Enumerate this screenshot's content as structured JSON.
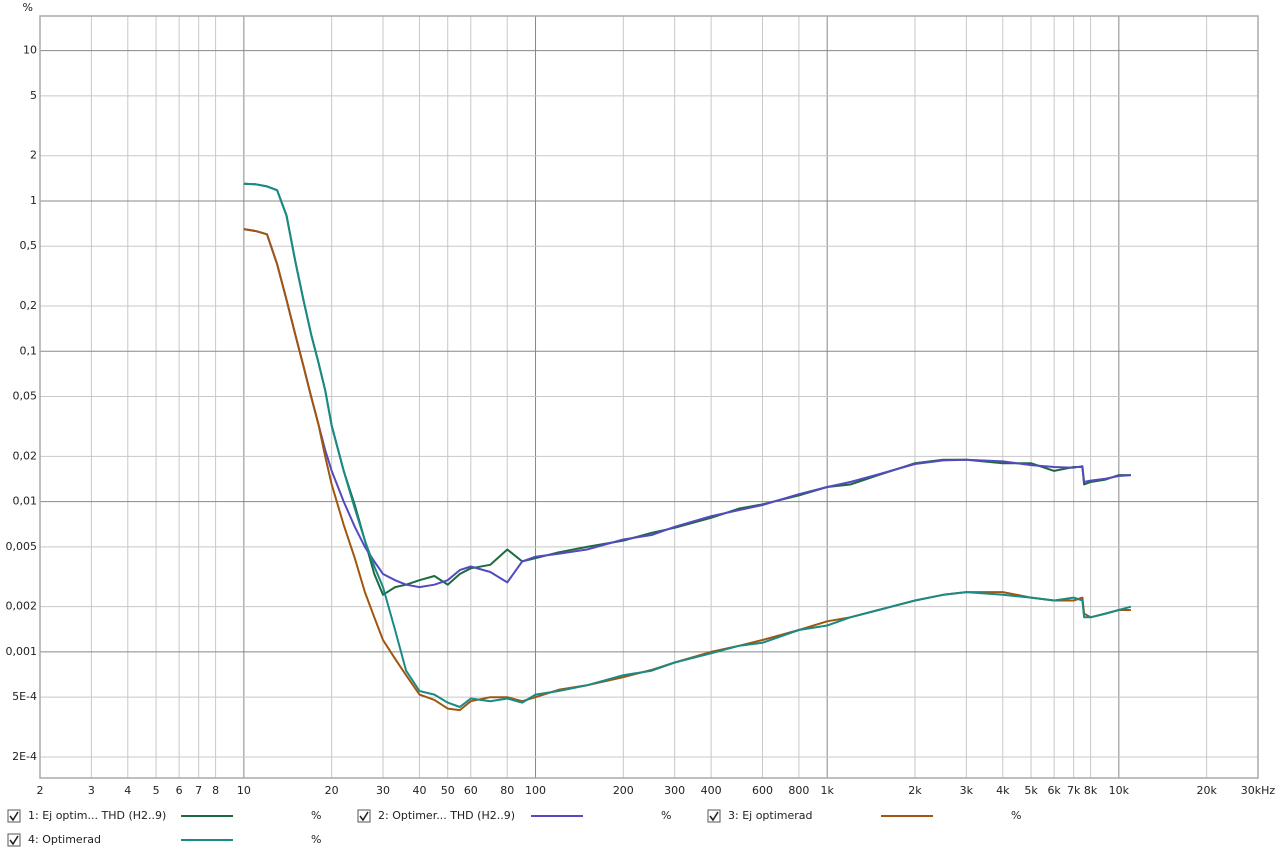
{
  "chart_data": {
    "type": "line",
    "y_label": "%",
    "xscale": "log",
    "yscale": "log",
    "grid": true,
    "xlim": [
      2,
      30000
    ],
    "ylim": [
      0.000145,
      17
    ],
    "xticks": [
      2,
      3,
      4,
      5,
      6,
      7,
      8,
      10,
      20,
      30,
      40,
      50,
      60,
      80,
      100,
      200,
      300,
      400,
      600,
      800,
      {
        "value": 1000,
        "label": "1k"
      },
      {
        "value": 2000,
        "label": "2k"
      },
      {
        "value": 3000,
        "label": "3k"
      },
      {
        "value": 4000,
        "label": "4k"
      },
      {
        "value": 5000,
        "label": "5k"
      },
      {
        "value": 6000,
        "label": "6k"
      },
      {
        "value": 7000,
        "label": "7k"
      },
      {
        "value": 8000,
        "label": "8k"
      },
      {
        "value": 10000,
        "label": "10k"
      },
      {
        "value": 20000,
        "label": "20k"
      },
      {
        "value": 30000,
        "label": "30kHz"
      }
    ],
    "yticks": [
      10,
      5,
      2,
      1,
      {
        "value": 0.5,
        "label": "0,5"
      },
      {
        "value": 0.2,
        "label": "0,2"
      },
      {
        "value": 0.1,
        "label": "0,1"
      },
      {
        "value": 0.05,
        "label": "0,05"
      },
      {
        "value": 0.02,
        "label": "0,02"
      },
      {
        "value": 0.01,
        "label": "0,01"
      },
      {
        "value": 0.005,
        "label": "0,005"
      },
      {
        "value": 0.002,
        "label": "0,002"
      },
      {
        "value": 0.001,
        "label": "0,001"
      },
      {
        "value": 0.0005,
        "label": "5E-4"
      },
      {
        "value": 0.0002,
        "label": "2E-4"
      }
    ],
    "x": [
      10,
      11,
      12,
      13,
      14,
      15,
      16,
      17,
      18,
      19,
      20,
      22,
      24,
      26,
      28,
      30,
      33,
      36,
      40,
      45,
      50,
      55,
      60,
      70,
      80,
      90,
      100,
      120,
      150,
      200,
      250,
      300,
      400,
      500,
      600,
      800,
      1000,
      1200,
      1500,
      2000,
      2500,
      3000,
      4000,
      5000,
      6000,
      7000,
      7500,
      7600,
      8000,
      9000,
      10000,
      11000
    ],
    "series": [
      {
        "name": "1: Ej optim... THD (H2..9)",
        "unit": "%",
        "color": "#1c6b40",
        "values": [
          1.3,
          1.29,
          1.25,
          1.18,
          0.8,
          0.4,
          0.22,
          0.13,
          0.085,
          0.055,
          0.032,
          0.016,
          0.0095,
          0.0055,
          0.0033,
          0.0024,
          0.0027,
          0.0028,
          0.003,
          0.0032,
          0.0028,
          0.0033,
          0.0036,
          0.0038,
          0.0048,
          0.004,
          0.0042,
          0.0046,
          0.005,
          0.0055,
          0.0062,
          0.0067,
          0.0078,
          0.009,
          0.0096,
          0.011,
          0.0125,
          0.013,
          0.015,
          0.018,
          0.019,
          0.019,
          0.018,
          0.018,
          0.016,
          0.017,
          0.017,
          0.013,
          0.0135,
          0.014,
          0.015,
          0.015
        ]
      },
      {
        "name": "2: Optimer... THD (H2..9)",
        "unit": "%",
        "color": "#5549c0",
        "values": [
          0.65,
          0.63,
          0.6,
          0.38,
          0.22,
          0.13,
          0.08,
          0.05,
          0.033,
          0.022,
          0.016,
          0.01,
          0.0068,
          0.005,
          0.004,
          0.0033,
          0.003,
          0.0028,
          0.0027,
          0.0028,
          0.003,
          0.0035,
          0.0037,
          0.0034,
          0.0029,
          0.004,
          0.0043,
          0.0045,
          0.0048,
          0.0056,
          0.006,
          0.0068,
          0.008,
          0.0088,
          0.0095,
          0.0112,
          0.0125,
          0.0135,
          0.0152,
          0.0178,
          0.0188,
          0.019,
          0.0185,
          0.0175,
          0.017,
          0.0168,
          0.0172,
          0.0135,
          0.0138,
          0.0142,
          0.0148,
          0.015
        ]
      },
      {
        "name": "3: Ej optimerad",
        "unit": "%",
        "color": "#a0560f",
        "values": [
          0.65,
          0.63,
          0.6,
          0.38,
          0.22,
          0.13,
          0.08,
          0.05,
          0.033,
          0.02,
          0.013,
          0.007,
          0.0042,
          0.0025,
          0.0017,
          0.0012,
          0.0009,
          0.0007,
          0.00052,
          0.00048,
          0.00042,
          0.00041,
          0.00047,
          0.0005,
          0.0005,
          0.00047,
          0.0005,
          0.00056,
          0.0006,
          0.00068,
          0.00076,
          0.00085,
          0.001,
          0.0011,
          0.0012,
          0.0014,
          0.0016,
          0.0017,
          0.0019,
          0.0022,
          0.0024,
          0.0025,
          0.0025,
          0.0023,
          0.0022,
          0.0022,
          0.0023,
          0.0018,
          0.0017,
          0.0018,
          0.0019,
          0.0019
        ]
      },
      {
        "name": "4: Optimerad",
        "unit": "%",
        "color": "#1a8a86",
        "values": [
          1.3,
          1.29,
          1.25,
          1.18,
          0.8,
          0.4,
          0.22,
          0.13,
          0.085,
          0.055,
          0.032,
          0.016,
          0.009,
          0.0055,
          0.0037,
          0.0027,
          0.0014,
          0.00075,
          0.00055,
          0.00052,
          0.00046,
          0.00043,
          0.00049,
          0.00047,
          0.00049,
          0.00046,
          0.00052,
          0.00055,
          0.0006,
          0.0007,
          0.00075,
          0.00085,
          0.00098,
          0.0011,
          0.00115,
          0.0014,
          0.0015,
          0.0017,
          0.0019,
          0.0022,
          0.0024,
          0.0025,
          0.0024,
          0.0023,
          0.0022,
          0.0023,
          0.0022,
          0.0017,
          0.0017,
          0.0018,
          0.0019,
          0.002
        ]
      }
    ]
  }
}
